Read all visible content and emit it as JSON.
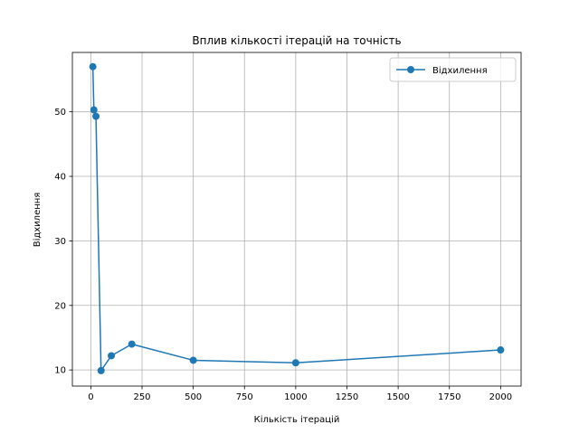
{
  "chart_data": {
    "type": "line",
    "title": "Вплив кількості ітерацій на точність",
    "xlabel": "Кількість ітерацій",
    "ylabel": "Відхилення",
    "xlim": [
      -90,
      2100
    ],
    "ylim": [
      7.5,
      59.2
    ],
    "xticks": [
      0,
      250,
      500,
      750,
      1000,
      1250,
      1500,
      1750,
      2000
    ],
    "yticks": [
      10,
      20,
      30,
      40,
      50
    ],
    "grid": true,
    "legend_position": "top-right",
    "series": [
      {
        "name": "Відхилення",
        "color": "#1f77b4",
        "marker": "circle",
        "x": [
          10,
          15,
          25,
          50,
          100,
          200,
          500,
          1000,
          2000
        ],
        "y": [
          57.0,
          50.3,
          49.3,
          9.9,
          12.2,
          14.0,
          11.5,
          11.1,
          13.1
        ]
      }
    ]
  }
}
